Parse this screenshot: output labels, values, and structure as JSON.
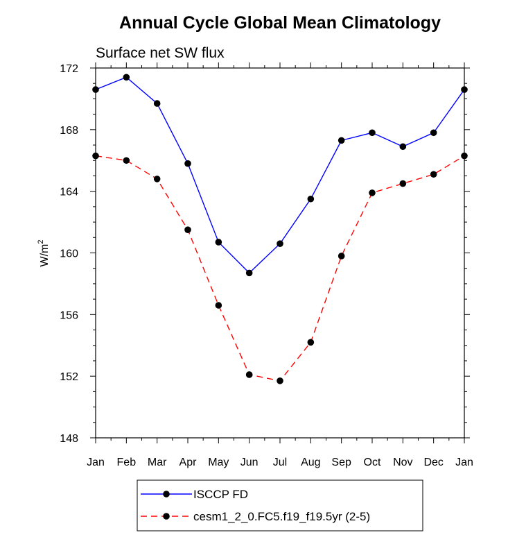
{
  "chart_data": {
    "type": "line",
    "title": "Annual Cycle Global Mean Climatology",
    "subtitle": "Surface net SW flux",
    "ylabel": "W/m",
    "ylabel_superscript": "2",
    "xlabel": "",
    "categories": [
      "Jan",
      "Feb",
      "Mar",
      "Apr",
      "May",
      "Jun",
      "Jul",
      "Aug",
      "Sep",
      "Oct",
      "Nov",
      "Dec",
      "Jan"
    ],
    "ylim": [
      148,
      172
    ],
    "yticks": [
      "148",
      "152",
      "156",
      "160",
      "164",
      "168",
      "172"
    ],
    "grid": false,
    "legend_position": "bottom",
    "series": [
      {
        "name": "ISCCP FD",
        "color": "#0000ff",
        "dash": "solid",
        "values": [
          170.6,
          171.4,
          169.7,
          165.8,
          160.7,
          158.7,
          160.6,
          163.5,
          167.3,
          167.8,
          166.9,
          167.8,
          170.6
        ]
      },
      {
        "name": "cesm1_2_0.FC5.f19_f19.5yr (2-5)",
        "color": "#ff0000",
        "dash": "dashed",
        "values": [
          166.3,
          166.0,
          164.8,
          161.5,
          156.6,
          152.1,
          151.7,
          154.2,
          159.8,
          163.9,
          164.5,
          165.1,
          166.3
        ]
      }
    ]
  }
}
